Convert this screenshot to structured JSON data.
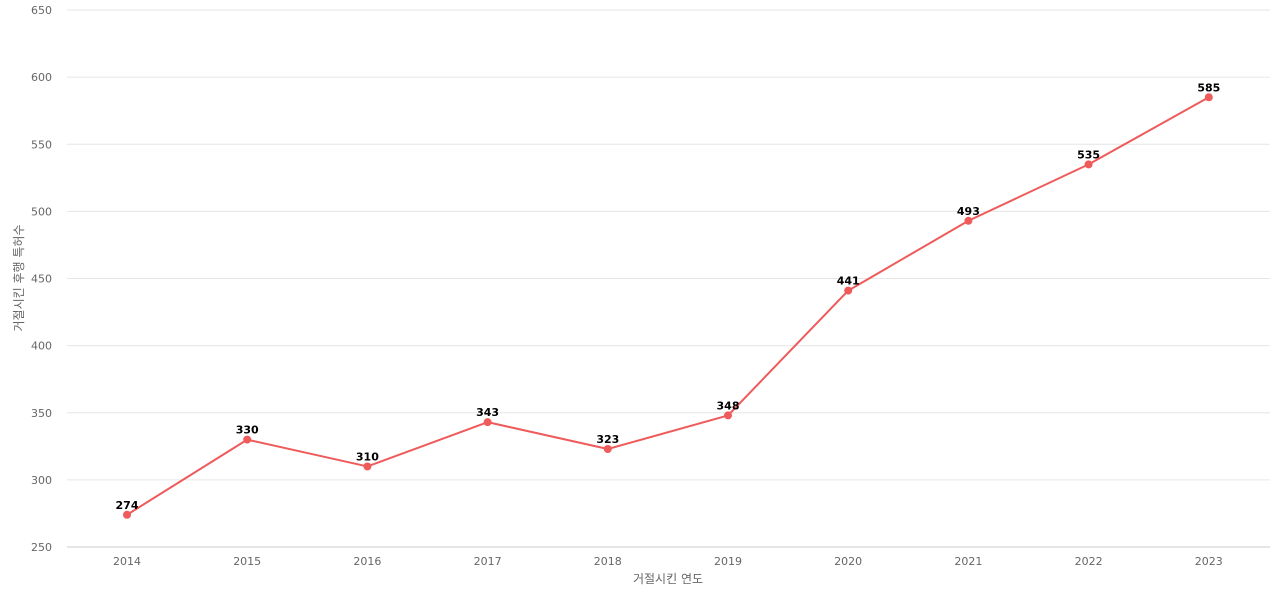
{
  "chart_data": {
    "type": "line",
    "title": "",
    "xlabel": "거절시킨 연도",
    "ylabel": "거절시킨 후행 특허수",
    "categories": [
      "2014",
      "2015",
      "2016",
      "2017",
      "2018",
      "2019",
      "2020",
      "2021",
      "2022",
      "2023"
    ],
    "series": [
      {
        "values": [
          274,
          330,
          310,
          343,
          323,
          348,
          441,
          493,
          535,
          585
        ],
        "color": "#ef5a5a"
      }
    ],
    "ylim": [
      250,
      650
    ],
    "yticks": [
      250,
      300,
      350,
      400,
      450,
      500,
      550,
      600,
      650
    ],
    "grid": true,
    "legend": "none",
    "data_labels": true
  }
}
